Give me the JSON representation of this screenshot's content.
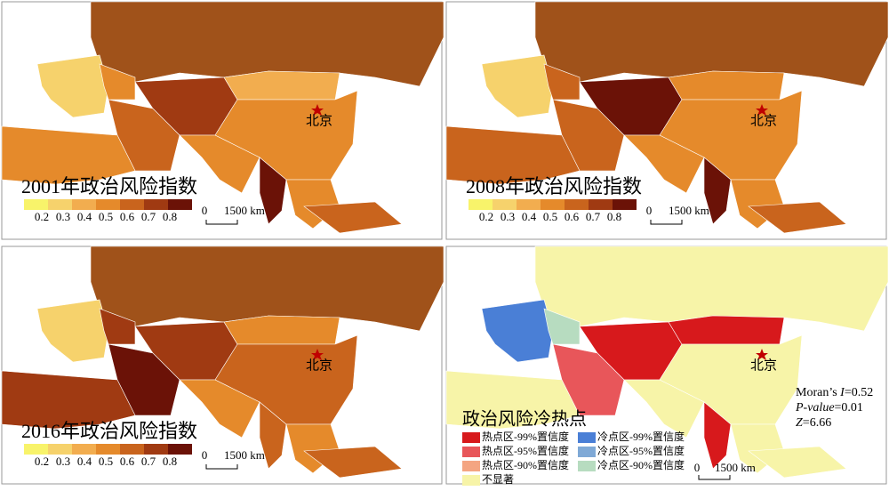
{
  "panels": [
    {
      "title": "2001年政治风险指数",
      "city": "北京",
      "scale": {
        "zero": "0",
        "length": "1500 km"
      },
      "legend": {
        "ticks": [
          0.2,
          0.3,
          0.4,
          0.5,
          0.6,
          0.7,
          0.8
        ],
        "colors": [
          "#f8f36a",
          "#f6d26c",
          "#f2ad4f",
          "#e58a2b",
          "#c9641d",
          "#a03a12",
          "#6b1207"
        ]
      }
    },
    {
      "title": "2008年政治风险指数",
      "city": "北京",
      "scale": {
        "zero": "0",
        "length": "1500 km"
      },
      "legend": {
        "ticks": [
          0.2,
          0.3,
          0.4,
          0.5,
          0.6,
          0.7,
          0.8
        ],
        "colors": [
          "#f8f36a",
          "#f6d26c",
          "#f2ad4f",
          "#e58a2b",
          "#c9641d",
          "#a03a12",
          "#6b1207"
        ]
      }
    },
    {
      "title": "2016年政治风险指数",
      "city": "北京",
      "scale": {
        "zero": "0",
        "length": "1500 km"
      },
      "legend": {
        "ticks": [
          0.2,
          0.3,
          0.4,
          0.5,
          0.6,
          0.7,
          0.8
        ],
        "colors": [
          "#f8f36a",
          "#f6d26c",
          "#f2ad4f",
          "#e58a2b",
          "#c9641d",
          "#a03a12",
          "#6b1207"
        ]
      }
    }
  ],
  "hotspot": {
    "title": "政治风险冷热点",
    "city": "北京",
    "scale": {
      "zero": "0",
      "length": "1500 km"
    },
    "legend": [
      {
        "label": "热点区-99%置信度",
        "color": "#d7191c"
      },
      {
        "label": "热点区-95%置信度",
        "color": "#e8565a"
      },
      {
        "label": "热点区-90%置信度",
        "color": "#f4a582"
      },
      {
        "label": "冷点区-99%置信度",
        "color": "#4a7fd6"
      },
      {
        "label": "冷点区-95%置信度",
        "color": "#7fa9d6"
      },
      {
        "label": "冷点区-90%置信度",
        "color": "#b7dcc0"
      },
      {
        "label": "不显著",
        "color": "#f7f4a8"
      }
    ],
    "stats": [
      {
        "prefix": "Moran’s ",
        "symbol": "I",
        "rest": "=0.52"
      },
      {
        "prefix": "",
        "symbol": "P-value",
        "rest": "=0.01"
      },
      {
        "prefix": "",
        "symbol": "Z",
        "rest": "=6.66"
      }
    ]
  }
}
